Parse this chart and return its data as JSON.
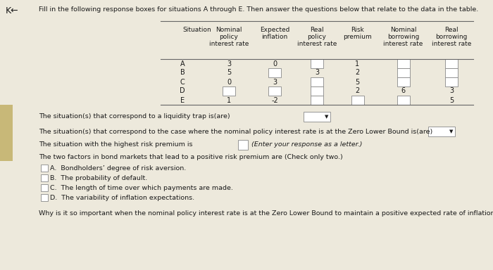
{
  "title": "Fill in the following response boxes for situations A through E. Then answer the questions below that relate to the data in the table.",
  "bg_color": "#ede9dc",
  "left_bar_color": "#c8c4a0",
  "col_headers_line1": [
    "Situation",
    "Nominal",
    "Expected",
    "Real",
    "Risk",
    "Nominal",
    "Real"
  ],
  "col_headers_line2": [
    "",
    "policy",
    "inflation",
    "policy",
    "premium",
    "borrowing",
    "borrowing"
  ],
  "col_headers_line3": [
    "",
    "interest rate",
    "",
    "interest rate",
    "",
    "interest rate",
    "interest rate"
  ],
  "situations": [
    "A",
    "B",
    "C",
    "D",
    "E"
  ],
  "nominal_policy": [
    "3",
    "5",
    "0",
    "",
    "1"
  ],
  "expected_inflation": [
    "0",
    "",
    "3",
    "",
    "-2"
  ],
  "real_policy": [
    "",
    "3",
    "",
    "",
    ""
  ],
  "risk_premium": [
    "1",
    "2",
    "5",
    "2",
    ""
  ],
  "nominal_borrowing": [
    "",
    "",
    "",
    "6",
    ""
  ],
  "real_borrowing": [
    "",
    "",
    "",
    "3",
    "5"
  ],
  "q1": "The situation(s) that correspond to a liquidity trap is(are)",
  "q2": "The situation(s) that correspond to the case where the nominal policy interest rate is at the Zero Lower Bound is(are)",
  "q3_pre": "The situation with the highest risk premium is",
  "q3_post": "(Enter your response as a letter.)",
  "q4": "The two factors in bond markets that lead to a positive risk premium are (Check only two.)",
  "choices": [
    "A.  Bondholders’ degree of risk aversion.",
    "B.  The probability of default.",
    "C.  The length of time over which payments are made.",
    "D.  The variability of inflation expectations."
  ],
  "q5": "Why is it so important when the nominal policy interest rate is at the Zero Lower Bound to maintain a positive expected rate of inflation?",
  "text_color": "#1a1a1a",
  "box_fill": "#ffffff",
  "box_edge": "#888888",
  "font_size": 7.0
}
